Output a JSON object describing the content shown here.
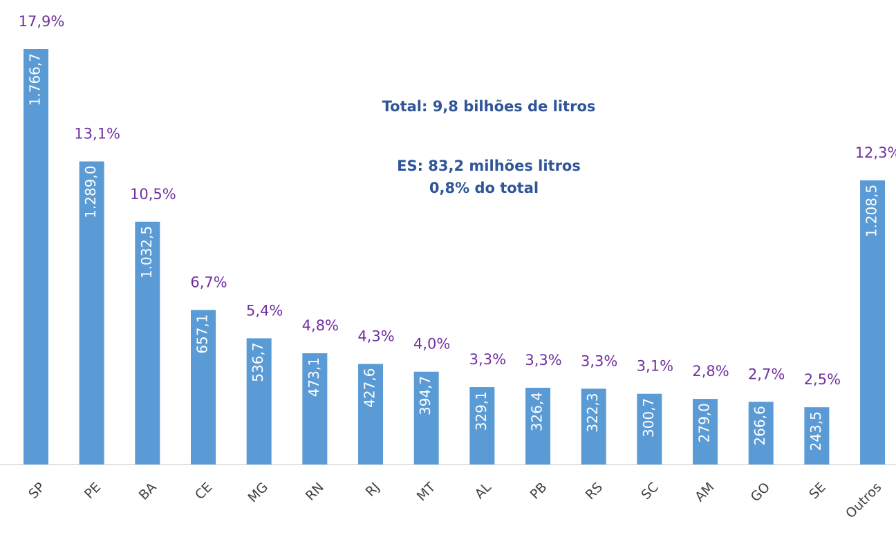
{
  "chart_data": {
    "type": "bar",
    "categories": [
      "SP",
      "PE",
      "BA",
      "CE",
      "MG",
      "RN",
      "RJ",
      "MT",
      "AL",
      "PB",
      "RS",
      "SC",
      "AM",
      "GO",
      "SE",
      "Outros"
    ],
    "values": [
      1766.7,
      1289.0,
      1032.5,
      657.1,
      536.7,
      473.1,
      427.6,
      394.7,
      329.1,
      326.4,
      322.3,
      300.7,
      279.0,
      266.6,
      243.5,
      1208.5
    ],
    "value_labels": [
      "1.766,7",
      "1.289,0",
      "1.032,5",
      "657,1",
      "536,7",
      "473,1",
      "427,6",
      "394,7",
      "329,1",
      "326,4",
      "322,3",
      "300,7",
      "279,0",
      "266,6",
      "243,5",
      "1.208,5"
    ],
    "share_labels": [
      "17,9%",
      "13,1%",
      "10,5%",
      "6,7%",
      "5,4%",
      "4,8%",
      "4,3%",
      "4,0%",
      "3,3%",
      "3,3%",
      "3,3%",
      "3,1%",
      "2,8%",
      "2,7%",
      "2,5%",
      "12,3%"
    ],
    "color": "#5b9bd5",
    "annotations": [
      "Total: 9,8 bilhões de litros",
      "ES: 83,2 milhões litros",
      "0,8% do total"
    ]
  }
}
